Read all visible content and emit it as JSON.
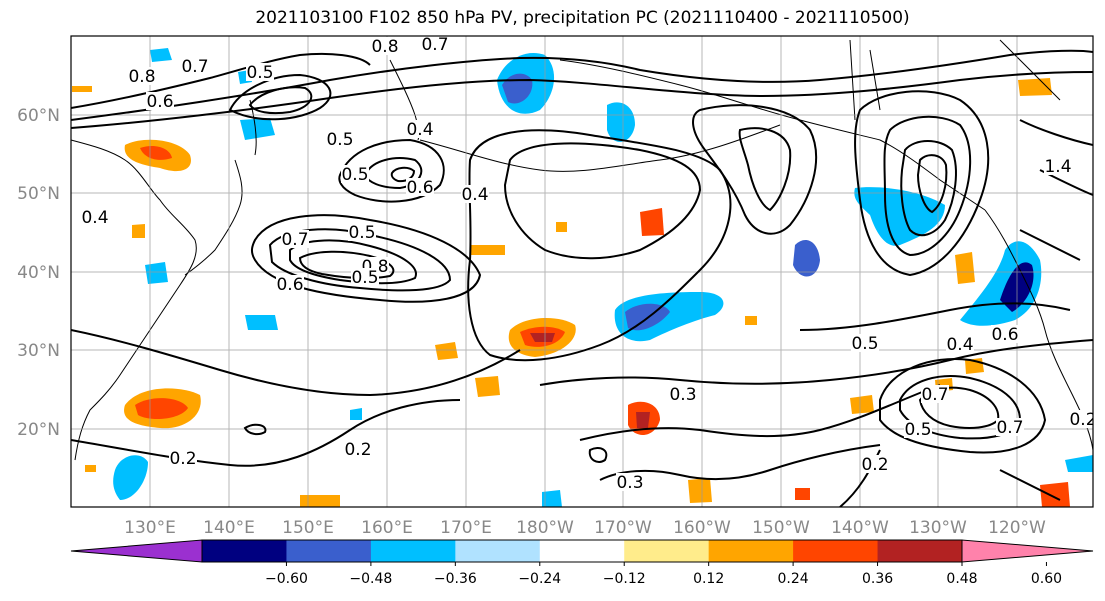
{
  "title": "2021103100 F102 850 hPa PV, precipitation PC (2021110400 - 2021110500)",
  "lat_labels": [
    "60°N",
    "50°N",
    "40°N",
    "30°N",
    "20°N"
  ],
  "lon_labels": [
    "130°E",
    "140°E",
    "150°E",
    "160°E",
    "170°E",
    "180°W",
    "170°W",
    "160°W",
    "150°W",
    "140°W",
    "130°W",
    "120°W"
  ],
  "colorbar": {
    "colors": [
      "#9b30d0",
      "#000080",
      "#3a5fcd",
      "#00bfff",
      "#b0e2ff",
      "#ffffff",
      "#ffec8b",
      "#ffa500",
      "#ff4500",
      "#b22222",
      "#ff82ab"
    ],
    "ticks": [
      "−0.60",
      "−0.48",
      "−0.36",
      "−0.24",
      "−0.12",
      "0.12",
      "0.24",
      "0.36",
      "0.48",
      "0.60"
    ]
  },
  "contour_labels": [
    "0.8",
    "0.7",
    "0.6",
    "0.5",
    "0.8",
    "0.7",
    "0.4",
    "0.5",
    "0.6",
    "0.5",
    "0.4",
    "0.4",
    "0.7",
    "0.5",
    "0.6",
    "0.8",
    "0.5",
    "0.3",
    "0.2",
    "0.3",
    "0.2",
    "0.5",
    "0.4",
    "0.6",
    "0.7",
    "0.5",
    "0.7",
    "0.2",
    "1.4",
    "0.2"
  ]
}
